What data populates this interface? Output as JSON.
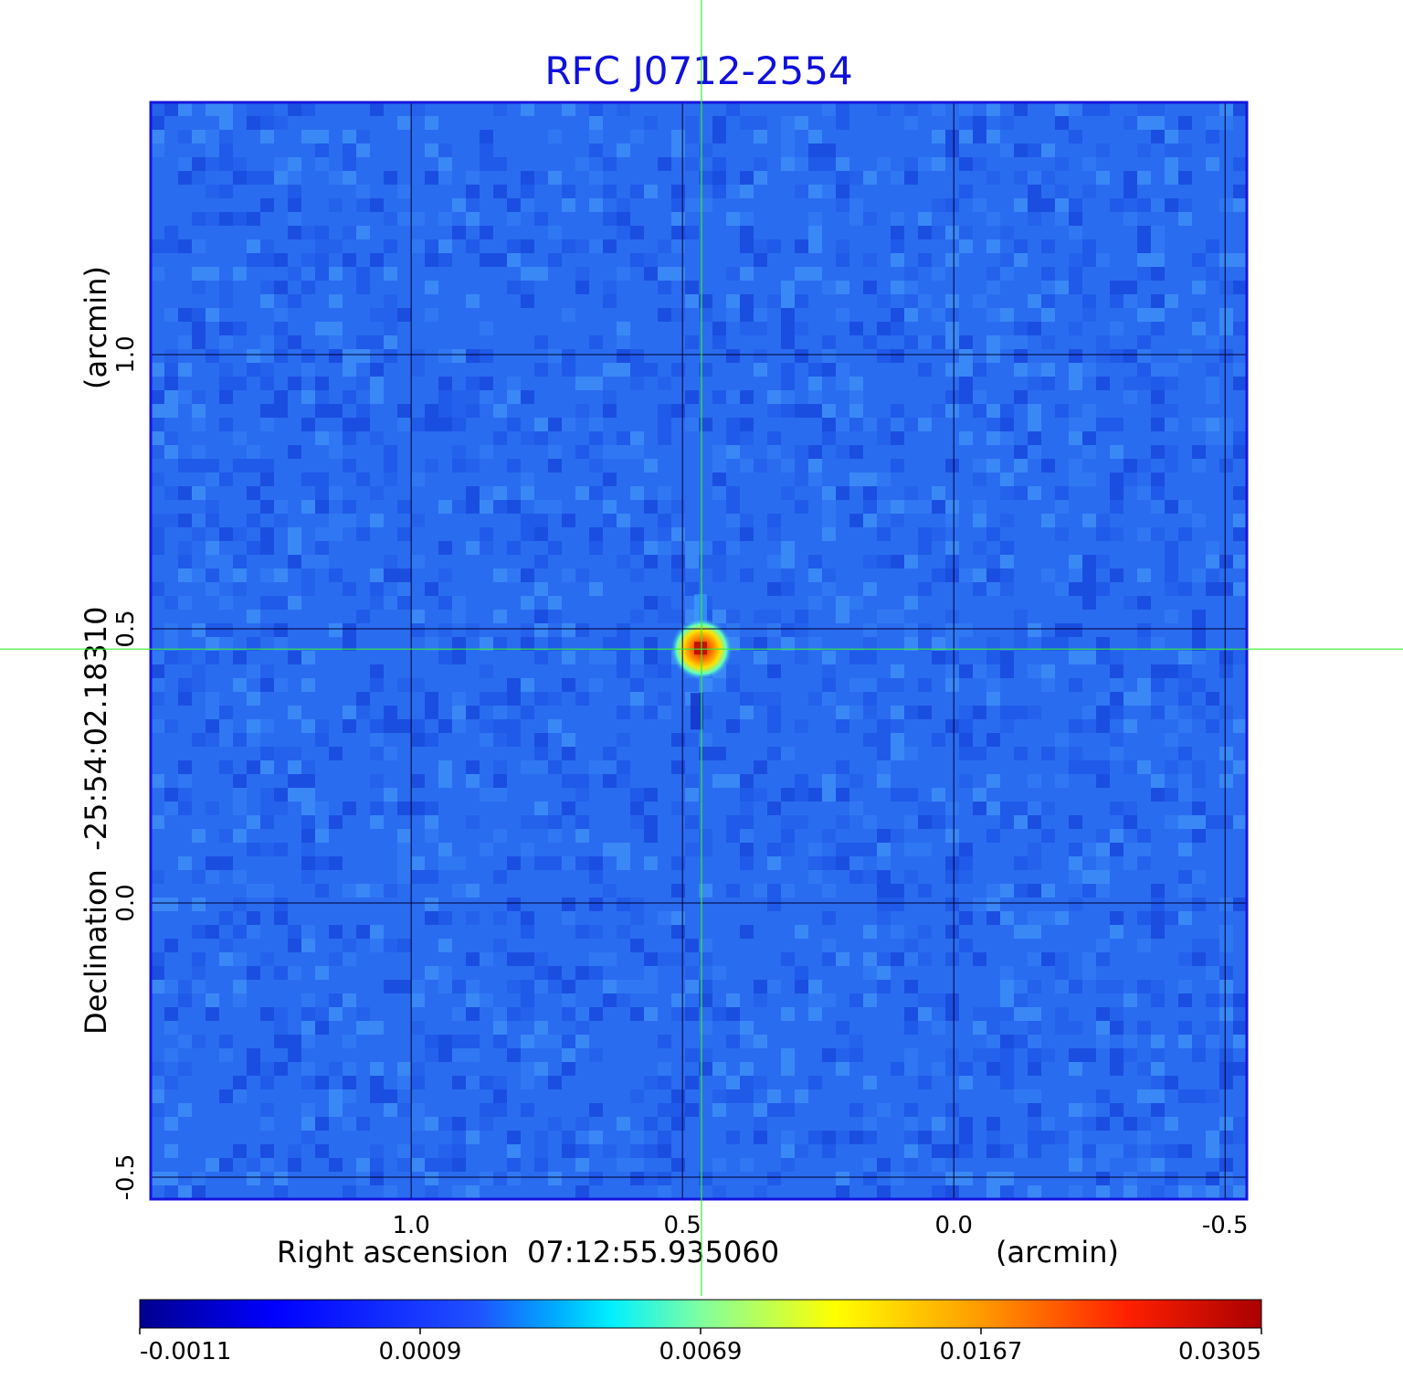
{
  "chart_data": {
    "type": "heatmap",
    "title": "RFC J0712-2554",
    "xlabel": "Right ascension  07:12:55.935060",
    "ylabel": "Declination  -25:54:02.18310",
    "x_unit": "(arcmin)",
    "y_unit": "(arcmin)",
    "x_ticks": [
      1.0,
      0.5,
      0.0,
      -0.5
    ],
    "x_tick_labels": [
      "1.0",
      "0.5",
      "0.0",
      "-0.5"
    ],
    "y_ticks": [
      -0.5,
      0.0,
      0.5,
      1.0
    ],
    "y_tick_labels": [
      "-0.5",
      "0.0",
      "0.5",
      "1.0"
    ],
    "xlim": [
      1.48,
      -0.54
    ],
    "ylim": [
      -0.54,
      1.46
    ],
    "grid": true,
    "crosshair": {
      "x": 0.465,
      "y": 0.463,
      "color": "#33ee33"
    },
    "source_peak": {
      "x": 0.465,
      "y": 0.463,
      "value": 0.0305
    },
    "colorbar": {
      "ticks": [
        -0.0011,
        0.0009,
        0.0069,
        0.0167,
        0.0305
      ],
      "tick_labels": [
        "-0.0011",
        "0.0009",
        "0.0069",
        "0.0167",
        "0.0305"
      ],
      "colormap": "jet"
    },
    "colors": {
      "title": "#1010dd",
      "frame": "#1515dd",
      "grid": "#000033"
    }
  }
}
